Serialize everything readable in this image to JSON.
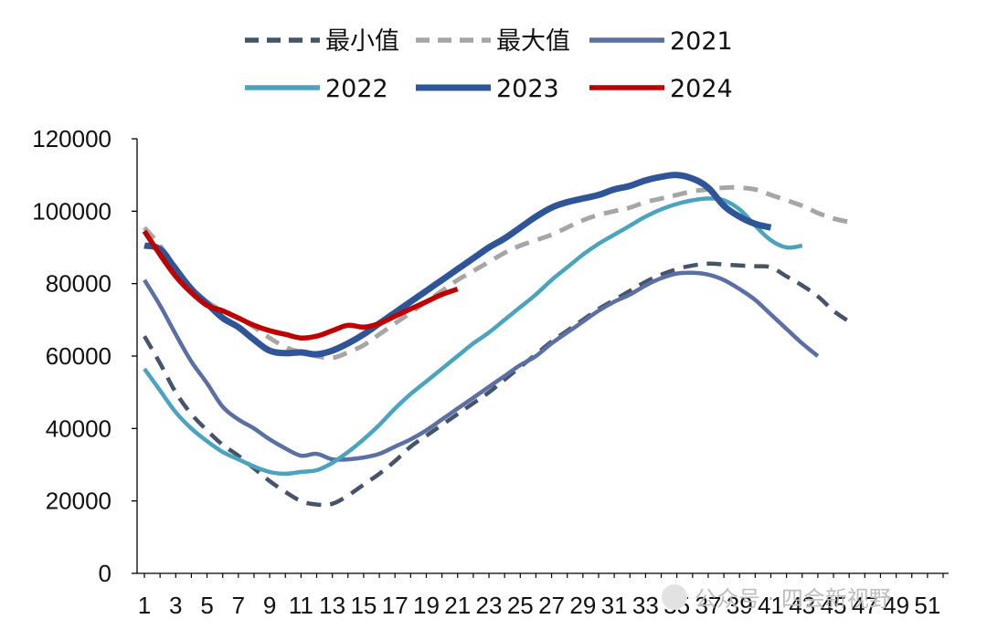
{
  "chart_data": {
    "type": "line",
    "title": "",
    "xlabel": "",
    "ylabel": "",
    "x": [
      1,
      2,
      3,
      4,
      5,
      6,
      7,
      8,
      9,
      10,
      11,
      12,
      13,
      14,
      15,
      16,
      17,
      18,
      19,
      20,
      21,
      22,
      23,
      24,
      25,
      26,
      27,
      28,
      29,
      30,
      31,
      32,
      33,
      34,
      35,
      36,
      37,
      38,
      39,
      40,
      41,
      42,
      43,
      44,
      45,
      46,
      47,
      48,
      49,
      50,
      51,
      52
    ],
    "xticks": [
      "1",
      "3",
      "5",
      "7",
      "9",
      "11",
      "13",
      "15",
      "17",
      "19",
      "21",
      "23",
      "25",
      "27",
      "29",
      "31",
      "33",
      "35",
      "37",
      "39",
      "41",
      "43",
      "45",
      "47",
      "49",
      "51"
    ],
    "xlim": [
      1,
      52
    ],
    "ylim": [
      0,
      120000
    ],
    "yticks": [
      "0",
      "20000",
      "40000",
      "60000",
      "80000",
      "100000",
      "120000"
    ],
    "legend_position": "top",
    "series": [
      {
        "name": "最小值",
        "color": "#44546a",
        "dash": "dashed",
        "values": [
          65500,
          58000,
          50000,
          44000,
          39500,
          35500,
          32500,
          29000,
          25500,
          22500,
          20000,
          19000,
          19200,
          21500,
          24500,
          27500,
          31000,
          35000,
          38000,
          41000,
          44000,
          47000,
          50000,
          53500,
          57000,
          60500,
          64000,
          67000,
          70000,
          73000,
          75500,
          78000,
          80500,
          82500,
          84000,
          85000,
          85500,
          85300,
          85000,
          84800,
          84500,
          82000,
          79500,
          76500,
          72500,
          69500,
          null,
          null,
          null,
          null,
          null,
          null
        ]
      },
      {
        "name": "最大值",
        "color": "#a6a6a6",
        "dash": "dashed",
        "values": [
          95500,
          90500,
          84500,
          78500,
          75000,
          72500,
          70500,
          68000,
          65000,
          62500,
          61000,
          60000,
          59500,
          61000,
          63000,
          66000,
          69000,
          72000,
          75000,
          78000,
          81000,
          83500,
          86000,
          88500,
          90500,
          92000,
          93500,
          95500,
          97500,
          99000,
          100000,
          101000,
          102500,
          103500,
          104500,
          105500,
          106000,
          106500,
          106500,
          106000,
          104500,
          103000,
          101500,
          99500,
          98000,
          97000,
          null,
          null,
          null,
          null,
          null,
          null
        ]
      },
      {
        "name": "2021",
        "color": "#5a6fa4",
        "dash": "solid",
        "values": [
          81000,
          74000,
          66000,
          58500,
          52500,
          46000,
          42500,
          40000,
          37000,
          34500,
          32500,
          33000,
          31500,
          31500,
          32000,
          33000,
          35000,
          37000,
          39500,
          42500,
          45500,
          48500,
          51500,
          54500,
          57500,
          60000,
          63500,
          66500,
          69500,
          72500,
          75000,
          77000,
          79500,
          81500,
          82800,
          83000,
          82500,
          81000,
          78500,
          75500,
          71500,
          67500,
          63500,
          60000,
          null,
          null,
          null,
          null,
          null,
          null,
          null,
          null
        ]
      },
      {
        "name": "2022",
        "color": "#4aa3bf",
        "dash": "solid",
        "values": [
          56500,
          50500,
          44500,
          40000,
          36500,
          33500,
          31500,
          29500,
          28000,
          27500,
          28000,
          28500,
          30500,
          33500,
          37000,
          41000,
          45500,
          49500,
          53000,
          56500,
          60000,
          63500,
          66500,
          70000,
          73500,
          77000,
          81000,
          84500,
          88000,
          91000,
          93500,
          96000,
          98500,
          100500,
          102000,
          103000,
          103500,
          103000,
          100500,
          96000,
          92000,
          90000,
          90500,
          null,
          null,
          null,
          null,
          null,
          null,
          null,
          null,
          null
        ]
      },
      {
        "name": "2023",
        "color": "#2e5597",
        "dash": "solid",
        "values": [
          90500,
          89500,
          84000,
          78500,
          74500,
          70500,
          68000,
          64500,
          61500,
          60800,
          61000,
          60500,
          61500,
          63500,
          66000,
          69000,
          72000,
          75000,
          78000,
          81000,
          84000,
          87000,
          90000,
          92500,
          95500,
          98500,
          101000,
          102500,
          103500,
          104500,
          106000,
          107000,
          108500,
          109500,
          110000,
          109000,
          106500,
          101500,
          98500,
          96500,
          95500,
          null,
          null,
          null,
          null,
          null,
          null,
          null,
          null,
          null,
          null,
          null
        ]
      },
      {
        "name": "2024",
        "color": "#c00000",
        "dash": "solid",
        "values": [
          94500,
          88000,
          82000,
          77500,
          74000,
          72500,
          70500,
          68500,
          67000,
          66000,
          65000,
          65500,
          67000,
          68500,
          68000,
          69000,
          71000,
          73000,
          75000,
          77000,
          78500,
          null,
          null,
          null,
          null,
          null,
          null,
          null,
          null,
          null,
          null,
          null,
          null,
          null,
          null,
          null,
          null,
          null,
          null,
          null,
          null,
          null,
          null,
          null,
          null,
          null,
          null,
          null,
          null,
          null,
          null,
          null
        ]
      }
    ]
  },
  "watermark": {
    "text": "公众号 · 四会新视野"
  }
}
